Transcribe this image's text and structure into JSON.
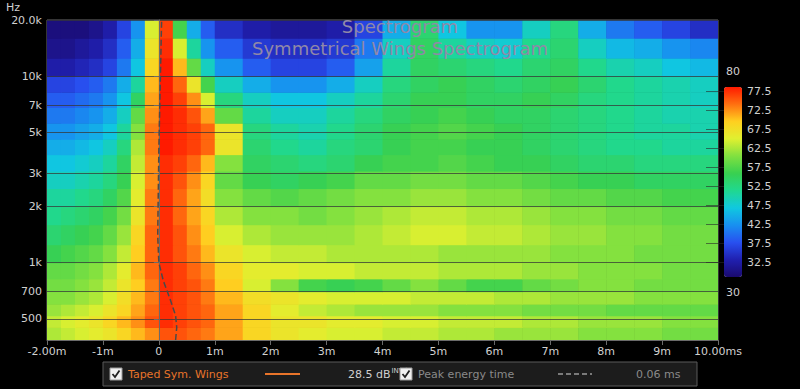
{
  "chart_data": {
    "type": "heatmap",
    "title": "Spectrogram",
    "subtitle": "Symmetrical Wings Spectrogram",
    "ylabel": "Hz",
    "log": "y",
    "grid": true,
    "xlim": [
      -2,
      10
    ],
    "xticks": [
      {
        "value": -2,
        "label": "-2.00m"
      },
      {
        "value": -1,
        "label": "-1m"
      },
      0,
      {
        "value": 1,
        "label": "1m"
      },
      {
        "value": 2,
        "label": "2m"
      },
      {
        "value": 3,
        "label": "3m"
      },
      {
        "value": 4,
        "label": "4m"
      },
      {
        "value": 5,
        "label": "5m"
      },
      {
        "value": 6,
        "label": "6m"
      },
      {
        "value": 7,
        "label": "7m"
      },
      {
        "value": 8,
        "label": "8m"
      },
      {
        "value": 9,
        "label": "9m"
      },
      {
        "value": 10,
        "label": "10.00ms"
      }
    ],
    "ylim": [
      385,
      20000
    ],
    "yticks": [
      500,
      700,
      {
        "value": 1000,
        "label": "1k"
      },
      {
        "value": 2000,
        "label": "2k"
      },
      {
        "value": 3000,
        "label": "3k"
      },
      {
        "value": 5000,
        "label": "5k"
      },
      {
        "value": 7000,
        "label": "7k"
      },
      {
        "value": 10000,
        "label": "10k"
      },
      {
        "value": 20000,
        "label": "20.0k"
      }
    ],
    "series": [
      {
        "name": "Taped Sym. Wings",
        "type": "heatmap",
        "color": "#e8742a",
        "readout": "28.5 dB",
        "readout_note": "INVC",
        "x_bins": [
          -2,
          -1.75,
          -1.5,
          -1.25,
          -1,
          -0.75,
          -0.5,
          -0.25,
          0,
          0.25,
          0.5,
          0.75,
          1,
          1.5,
          2,
          2.5,
          3,
          3.5,
          4,
          4.5,
          5,
          5.5,
          6,
          6.5,
          7,
          7.5,
          8,
          8.5,
          9,
          9.5,
          10
        ],
        "y_bins": [
          385,
          450,
          520,
          600,
          700,
          820,
          1000,
          1250,
          1600,
          2000,
          2500,
          3100,
          3800,
          4600,
          5600,
          6800,
          8200,
          10000,
          12500,
          16000,
          20000
        ],
        "cells": [
          [
            64,
            65,
            66,
            67,
            68,
            70,
            72,
            74,
            77,
            77,
            76,
            75,
            73,
            70,
            68,
            67,
            66,
            66,
            65,
            65,
            64,
            64,
            63,
            63,
            63,
            62,
            62,
            62,
            61,
            61
          ],
          [
            65,
            66,
            67,
            68,
            70,
            72,
            74,
            77,
            79,
            78,
            77,
            76,
            73,
            70,
            68,
            68,
            67,
            67,
            66,
            66,
            65,
            65,
            65,
            64,
            64,
            63,
            63,
            63,
            62,
            62
          ],
          [
            63,
            64,
            65,
            66,
            68,
            70,
            73,
            76,
            79,
            78,
            77,
            76,
            73,
            70,
            67,
            65,
            64,
            63,
            63,
            63,
            62,
            62,
            62,
            61,
            61,
            61,
            60,
            60,
            60,
            60
          ],
          [
            62,
            62,
            63,
            64,
            66,
            69,
            72,
            75,
            79,
            78,
            77,
            75,
            72,
            69,
            68,
            67,
            66,
            66,
            66,
            65,
            65,
            65,
            64,
            64,
            63,
            63,
            63,
            62,
            62,
            62
          ],
          [
            61,
            61,
            62,
            63,
            65,
            68,
            71,
            75,
            79,
            78,
            77,
            75,
            71,
            66,
            62,
            58,
            57,
            58,
            60,
            62,
            60,
            58,
            58,
            60,
            61,
            62,
            62,
            61,
            61,
            61
          ],
          [
            60,
            60,
            61,
            62,
            64,
            67,
            72,
            76,
            79,
            78,
            76,
            74,
            70,
            67,
            67,
            66,
            66,
            65,
            65,
            65,
            64,
            64,
            64,
            63,
            63,
            62,
            62,
            62,
            61,
            61
          ],
          [
            57,
            58,
            59,
            60,
            62,
            65,
            71,
            76,
            79,
            77,
            75,
            72,
            68,
            66,
            65,
            65,
            64,
            64,
            64,
            64,
            63,
            63,
            63,
            63,
            62,
            62,
            62,
            61,
            61,
            61
          ],
          [
            55,
            56,
            57,
            58,
            60,
            63,
            70,
            76,
            79,
            77,
            74,
            71,
            66,
            64,
            63,
            63,
            63,
            64,
            65,
            66,
            66,
            65,
            65,
            64,
            63,
            63,
            62,
            62,
            61,
            61
          ],
          [
            53,
            54,
            55,
            56,
            58,
            61,
            68,
            75,
            79,
            76,
            73,
            70,
            64,
            62,
            62,
            61,
            62,
            63,
            64,
            65,
            65,
            64,
            64,
            63,
            62,
            62,
            61,
            61,
            60,
            60
          ],
          [
            52,
            52,
            53,
            54,
            56,
            59,
            67,
            75,
            79,
            76,
            73,
            69,
            62,
            60,
            59,
            60,
            61,
            62,
            62,
            63,
            63,
            62,
            62,
            61,
            60,
            60,
            59,
            59,
            58,
            58
          ],
          [
            50,
            50,
            51,
            52,
            54,
            57,
            66,
            74,
            79,
            77,
            74,
            70,
            60,
            57,
            56,
            57,
            58,
            60,
            60,
            61,
            61,
            60,
            60,
            59,
            58,
            57,
            57,
            56,
            56,
            56
          ],
          [
            48,
            48,
            49,
            50,
            52,
            56,
            65,
            74,
            79,
            78,
            76,
            72,
            62,
            56,
            55,
            54,
            55,
            57,
            58,
            58,
            59,
            58,
            57,
            57,
            56,
            55,
            55,
            54,
            54,
            54
          ],
          [
            46,
            46,
            47,
            48,
            50,
            54,
            64,
            75,
            80,
            79,
            78,
            76,
            68,
            55,
            53,
            52,
            54,
            55,
            57,
            58,
            58,
            57,
            57,
            56,
            55,
            54,
            53,
            53,
            52,
            52
          ],
          [
            44,
            44,
            45,
            46,
            48,
            52,
            62,
            75,
            80,
            79,
            78,
            76,
            68,
            54,
            52,
            51,
            53,
            55,
            57,
            58,
            59,
            58,
            57,
            56,
            55,
            54,
            53,
            52,
            52,
            51
          ],
          [
            42,
            42,
            43,
            44,
            46,
            50,
            60,
            74,
            80,
            79,
            77,
            73,
            60,
            52,
            50,
            50,
            52,
            54,
            56,
            57,
            58,
            57,
            56,
            56,
            55,
            54,
            53,
            52,
            51,
            51
          ],
          [
            40,
            40,
            41,
            42,
            44,
            48,
            56,
            73,
            80,
            78,
            74,
            66,
            54,
            50,
            48,
            48,
            50,
            52,
            55,
            57,
            57,
            56,
            56,
            57,
            56,
            54,
            53,
            52,
            51,
            50
          ],
          [
            38,
            38,
            39,
            40,
            42,
            46,
            52,
            72,
            80,
            76,
            68,
            58,
            50,
            46,
            44,
            44,
            46,
            50,
            54,
            56,
            57,
            56,
            55,
            56,
            57,
            55,
            53,
            52,
            51,
            50
          ],
          [
            34,
            34,
            35,
            36,
            38,
            42,
            48,
            70,
            80,
            72,
            60,
            50,
            44,
            40,
            38,
            38,
            40,
            45,
            52,
            56,
            55,
            54,
            53,
            55,
            56,
            53,
            51,
            50,
            48,
            47
          ],
          [
            32,
            32,
            33,
            34,
            36,
            40,
            46,
            68,
            79,
            66,
            52,
            44,
            40,
            37,
            36,
            36,
            37,
            42,
            50,
            56,
            52,
            50,
            49,
            53,
            55,
            50,
            47,
            46,
            44,
            43
          ],
          [
            31,
            31,
            31,
            32,
            34,
            38,
            44,
            66,
            78,
            58,
            46,
            40,
            36,
            34,
            33,
            33,
            34,
            38,
            46,
            55,
            48,
            44,
            44,
            50,
            54,
            46,
            42,
            40,
            38,
            36
          ]
        ]
      },
      {
        "name": "Peak energy time",
        "type": "line",
        "color": "#4a4a4a",
        "line_style": "dashed",
        "readout": "0.06 ms",
        "x": [
          0.3,
          0.32,
          0.3,
          0.2,
          0.08,
          0.0,
          -0.02,
          0.0,
          0.05
        ],
        "y": [
          385,
          450,
          520,
          640,
          800,
          1000,
          1400,
          4000,
          20000
        ]
      }
    ],
    "colorbar": {
      "range": [
        30,
        80
      ],
      "ticks": [
        32.5,
        37.5,
        42.5,
        47.5,
        52.5,
        57.5,
        62.5,
        67.5,
        72.5,
        77.5
      ]
    }
  }
}
